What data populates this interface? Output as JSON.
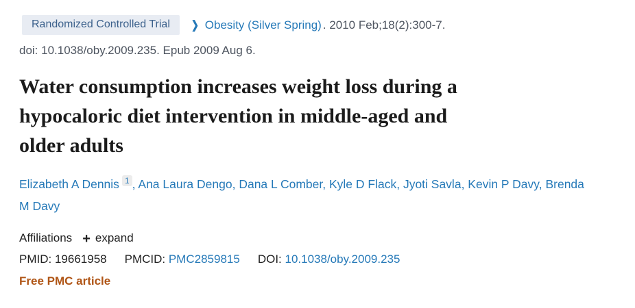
{
  "colors": {
    "link_blue": "#2579b8",
    "badge_background": "#e8ecf3",
    "badge_text": "#3c618c",
    "muted_text": "#4e5560",
    "dark_text": "#212121",
    "title_text": "#1b1b1b",
    "free_pmc_text": "#b05617"
  },
  "header": {
    "publication_type": "Randomized Controlled Trial",
    "chevron_icon": "❯",
    "journal": "Obesity (Silver Spring)",
    "citation_rest": ". 2010 Feb;18(2):300-7.",
    "doi_line": "doi: 10.1038/oby.2009.235. Epub 2009 Aug 6."
  },
  "title": {
    "full": "Water consumption increases weight loss during a hypocaloric diet intervention in middle-aged and older adults",
    "lines": [
      "Water consumption increases weight loss during a",
      "hypocaloric diet intervention in middle-aged and",
      "older adults"
    ]
  },
  "authors": [
    {
      "name": "Elizabeth A Dennis",
      "sup": "1",
      "sep": ", "
    },
    {
      "name": "Ana Laura Dengo",
      "sep": ", "
    },
    {
      "name": "Dana L Comber",
      "sep": ", "
    },
    {
      "name": "Kyle D Flack",
      "sep": ", "
    },
    {
      "name": "Jyoti Savla",
      "sep": ", "
    },
    {
      "name": "Kevin P Davy",
      "sep": ", "
    },
    {
      "name": "Brenda M Davy",
      "sep": ""
    }
  ],
  "affiliations": {
    "label": "Affiliations",
    "expand_icon": "+",
    "expand_label": "expand"
  },
  "identifiers": {
    "pmid_label": "PMID:",
    "pmid": "19661958",
    "pmcid_label": "PMCID:",
    "pmcid": "PMC2859815",
    "doi_label": "DOI:",
    "doi": "10.1038/oby.2009.235"
  },
  "free_pmc_label": "Free PMC article"
}
